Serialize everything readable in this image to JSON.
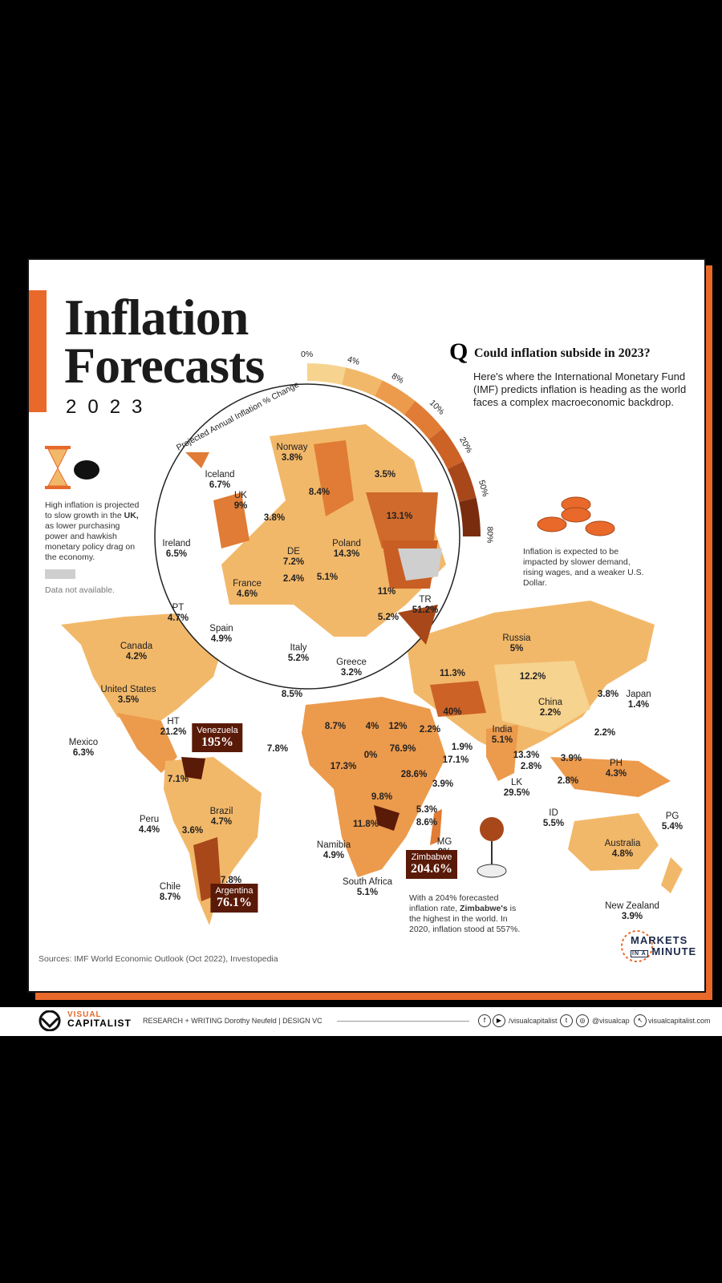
{
  "title_line1": "Inflation",
  "title_line2": "Forecasts",
  "year": "2023",
  "question": "Could inflation subside in 2023?",
  "question_mark": "Q",
  "description": "Here's where the International Monetary Fund (IMF) predicts inflation is heading as the world faces a complex macroeconomic backdrop.",
  "note_uk_parts": [
    "High inflation is projected to slow growth in the ",
    "UK,",
    " as lower purchasing power and hawkish monetary policy drag on the economy."
  ],
  "note_data_na": "Data not available.",
  "note_coins": "Inflation is expected to be impacted by slower demand, rising wages, and a weaker U.S. Dollar.",
  "note_zimbabwe_parts": [
    "With a 204% forecasted inflation rate, ",
    "Zimbabwe's",
    " is the highest in the world. In 2020, inflation stood at 557%."
  ],
  "scale_title": "Projected Annual Inflation % Change",
  "scale_ticks": [
    "0%",
    "4%",
    "8%",
    "10%",
    "20%",
    "50%",
    "80%"
  ],
  "scale_colors": [
    "#f6d38e",
    "#f2b869",
    "#ec9a4c",
    "#e07c35",
    "#cc6226",
    "#a8481a",
    "#7a2c0e"
  ],
  "sources": "Sources: IMF World Economic Outlook (Oct 2022), Investopedia",
  "markets_line1": "MARKETS",
  "markets_in_a": "IN A",
  "markets_line2": "MINUTE",
  "footer": {
    "brand_line1": "VISUAL",
    "brand_line2": "CAPITALIST",
    "credits": "RESEARCH + WRITING Dorothy Neufeld  |  DESIGN VC",
    "handle1": "/visualcapitalist",
    "handle2": "@visualcap",
    "site": "visualcapitalist.com"
  },
  "countries": [
    {
      "name": "Norway",
      "value": "3.8%"
    },
    {
      "name": "Iceland",
      "value": "6.7%"
    },
    {
      "name": "UK",
      "value": "9%"
    },
    {
      "name": "",
      "value": "8.4%"
    },
    {
      "name": "",
      "value": "3.5%"
    },
    {
      "name": "",
      "value": "3.8%"
    },
    {
      "name": "",
      "value": "13.1%"
    },
    {
      "name": "Ireland",
      "value": "6.5%"
    },
    {
      "name": "DE",
      "value": "7.2%"
    },
    {
      "name": "Poland",
      "value": "14.3%"
    },
    {
      "name": "",
      "value": "5.1%"
    },
    {
      "name": "France",
      "value": "4.6%"
    },
    {
      "name": "",
      "value": "2.4%"
    },
    {
      "name": "",
      "value": "11%"
    },
    {
      "name": "TR",
      "value": "51.2%"
    },
    {
      "name": "",
      "value": "5.2%"
    },
    {
      "name": "PT",
      "value": "4.7%"
    },
    {
      "name": "Spain",
      "value": "4.9%"
    },
    {
      "name": "Italy",
      "value": "5.2%"
    },
    {
      "name": "Greece",
      "value": "3.2%"
    },
    {
      "name": "",
      "value": "8.5%"
    },
    {
      "name": "Canada",
      "value": "4.2%"
    },
    {
      "name": "United States",
      "value": "3.5%"
    },
    {
      "name": "Russia",
      "value": "5%"
    },
    {
      "name": "",
      "value": "11.3%"
    },
    {
      "name": "",
      "value": "12.2%"
    },
    {
      "name": "",
      "value": "3.8%"
    },
    {
      "name": "Japan",
      "value": "1.4%"
    },
    {
      "name": "China",
      "value": "2.2%"
    },
    {
      "name": "",
      "value": "40%"
    },
    {
      "name": "HT",
      "value": "21.2%"
    },
    {
      "name": "Mexico",
      "value": "6.3%"
    },
    {
      "name": "",
      "value": "7.8%"
    },
    {
      "name": "",
      "value": "8.7%"
    },
    {
      "name": "",
      "value": "4%"
    },
    {
      "name": "",
      "value": "12%"
    },
    {
      "name": "",
      "value": "2.2%"
    },
    {
      "name": "India",
      "value": "5.1%"
    },
    {
      "name": "",
      "value": "2.2%"
    },
    {
      "name": "",
      "value": "0%"
    },
    {
      "name": "",
      "value": "76.9%"
    },
    {
      "name": "",
      "value": "1.9%"
    },
    {
      "name": "",
      "value": "17.1%"
    },
    {
      "name": "",
      "value": "13.3%"
    },
    {
      "name": "",
      "value": "2.8%"
    },
    {
      "name": "",
      "value": "3.9%"
    },
    {
      "name": "PH",
      "value": "4.3%"
    },
    {
      "name": "",
      "value": "17.3%"
    },
    {
      "name": "",
      "value": "28.6%"
    },
    {
      "name": "",
      "value": "7.1%"
    },
    {
      "name": "",
      "value": "3.9%"
    },
    {
      "name": "LK",
      "value": "29.5%"
    },
    {
      "name": "",
      "value": "2.8%"
    },
    {
      "name": "",
      "value": "9.8%"
    },
    {
      "name": "Brazil",
      "value": "4.7%"
    },
    {
      "name": "Peru",
      "value": "4.4%"
    },
    {
      "name": "",
      "value": "3.6%"
    },
    {
      "name": "",
      "value": "5.3%"
    },
    {
      "name": "",
      "value": "8.6%"
    },
    {
      "name": "",
      "value": "11.8%"
    },
    {
      "name": "ID",
      "value": "5.5%"
    },
    {
      "name": "PG",
      "value": "5.4%"
    },
    {
      "name": "MG",
      "value": "8%"
    },
    {
      "name": "Namibia",
      "value": "4.9%"
    },
    {
      "name": "Australia",
      "value": "4.8%"
    },
    {
      "name": "Chile",
      "value": "8.7%"
    },
    {
      "name": "",
      "value": "7.8%"
    },
    {
      "name": "South Africa",
      "value": "5.1%"
    },
    {
      "name": "New Zealand",
      "value": "3.9%"
    }
  ],
  "highlights": [
    {
      "name": "Venezuela",
      "value": "195%"
    },
    {
      "name": "Zimbabwe",
      "value": "204.6%"
    },
    {
      "name": "Argentina",
      "value": "76.1%"
    }
  ]
}
